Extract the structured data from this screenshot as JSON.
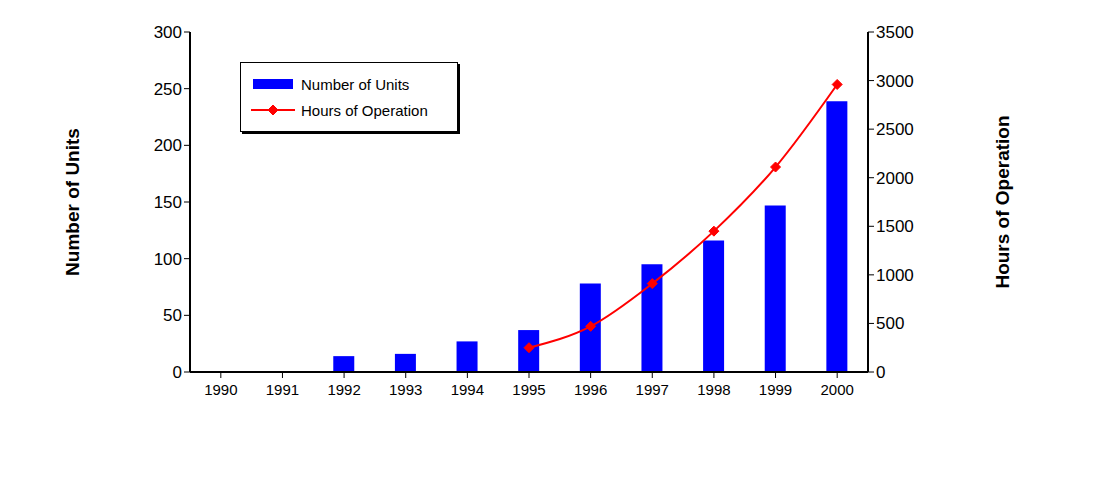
{
  "chart_data": {
    "type": "bar",
    "categories": [
      "1990",
      "1991",
      "1992",
      "1993",
      "1994",
      "1995",
      "1996",
      "1997",
      "1998",
      "1999",
      "2000"
    ],
    "series": [
      {
        "name": "Number of Units",
        "type": "bar",
        "color": "#0000ff",
        "values": [
          null,
          null,
          14,
          16,
          27,
          37,
          78,
          95,
          116,
          147,
          239
        ]
      },
      {
        "name": "Hours of Operation",
        "type": "line",
        "color": "#ff0000",
        "marker": "diamond",
        "axis": "y2",
        "values": [
          null,
          null,
          null,
          null,
          null,
          250,
          470,
          910,
          1450,
          2110,
          2960
        ]
      }
    ],
    "ylim": [
      0,
      300
    ],
    "yticks": [
      0,
      50,
      100,
      150,
      200,
      250,
      300
    ],
    "y2lim": [
      0,
      3500
    ],
    "y2ticks": [
      0,
      500,
      1000,
      1500,
      2000,
      2500,
      3000,
      3500
    ],
    "y_label": "Number of Units",
    "y2_label": "Hours of Operation",
    "legend": "upper left",
    "grid": false
  }
}
